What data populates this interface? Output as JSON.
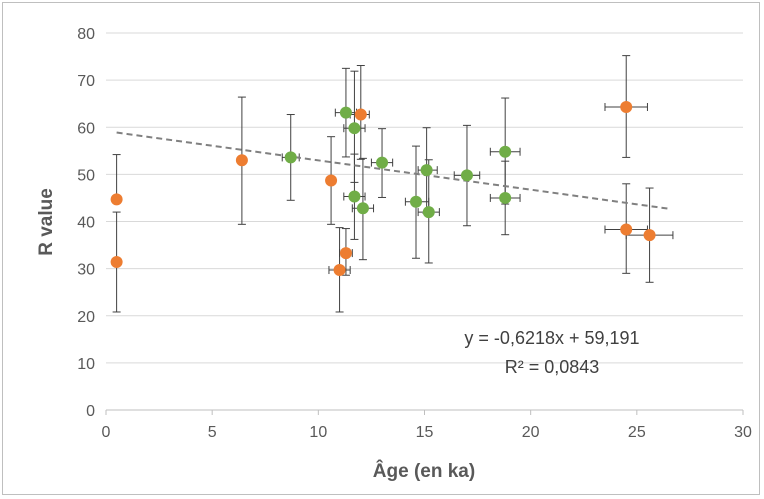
{
  "chart_data": {
    "type": "scatter",
    "xlabel": "Âge (en ka)",
    "ylabel": "R value",
    "xlim": [
      0,
      30
    ],
    "ylim": [
      0,
      80
    ],
    "x_ticks": [
      "0",
      "5",
      "10",
      "15",
      "20",
      "25",
      "30"
    ],
    "y_ticks": [
      "0",
      "10",
      "20",
      "30",
      "40",
      "50",
      "60",
      "70",
      "80"
    ],
    "grid": true,
    "legend": "none",
    "colors": {
      "orange": "#ED7D31",
      "green": "#70AD47",
      "error": "#404040",
      "grid": "#d9d9d9",
      "trend": "#808080"
    },
    "series": [
      {
        "color": "orange",
        "points": [
          {
            "x": 0.5,
            "y": 44.7,
            "yerr": [
              44.7,
              54.2
            ],
            "xerr": null
          },
          {
            "x": 0.5,
            "y": 31.4,
            "yerr": [
              20.8,
              42.0
            ],
            "xerr": null
          },
          {
            "x": 6.4,
            "y": 53.0,
            "yerr": [
              39.4,
              66.4
            ],
            "xerr": null
          },
          {
            "x": 10.6,
            "y": 48.7,
            "yerr": [
              39.4,
              58.0
            ],
            "xerr": null
          },
          {
            "x": 11.0,
            "y": 29.7,
            "yerr": [
              20.8,
              38.7
            ],
            "xerr": [
              10.5,
              11.5
            ]
          },
          {
            "x": 11.3,
            "y": 33.3,
            "yerr": [
              28.6,
              38.5
            ],
            "xerr": [
              11.0,
              11.6
            ]
          },
          {
            "x": 12.0,
            "y": 62.7,
            "yerr": [
              53.2,
              73.1
            ],
            "xerr": [
              11.5,
              12.4
            ]
          },
          {
            "x": 24.5,
            "y": 64.3,
            "yerr": [
              53.6,
              75.2
            ],
            "xerr": [
              23.5,
              25.5
            ]
          },
          {
            "x": 24.5,
            "y": 38.3,
            "yerr": [
              29.0,
              48.0
            ],
            "xerr": [
              23.5,
              25.5
            ]
          },
          {
            "x": 25.6,
            "y": 37.1,
            "yerr": [
              27.1,
              47.1
            ],
            "xerr": [
              24.5,
              26.7
            ]
          }
        ]
      },
      {
        "color": "green",
        "points": [
          {
            "x": 8.7,
            "y": 53.6,
            "yerr": [
              44.5,
              62.7
            ],
            "xerr": [
              8.3,
              9.1
            ]
          },
          {
            "x": 11.3,
            "y": 63.1,
            "yerr": [
              53.7,
              72.5
            ],
            "xerr": [
              10.8,
              11.8
            ]
          },
          {
            "x": 11.7,
            "y": 59.8,
            "yerr": [
              48.3,
              71.9
            ],
            "xerr": [
              11.2,
              12.2
            ]
          },
          {
            "x": 11.7,
            "y": 45.3,
            "yerr": [
              36.2,
              54.3
            ],
            "xerr": [
              11.2,
              12.2
            ]
          },
          {
            "x": 12.1,
            "y": 42.8,
            "yerr": [
              31.9,
              53.4
            ],
            "xerr": [
              11.6,
              12.6
            ]
          },
          {
            "x": 13.0,
            "y": 52.5,
            "yerr": [
              45.1,
              59.7
            ],
            "xerr": [
              12.5,
              13.5
            ]
          },
          {
            "x": 14.6,
            "y": 44.2,
            "yerr": [
              32.2,
              56.0
            ],
            "xerr": [
              14.1,
              15.2
            ]
          },
          {
            "x": 15.1,
            "y": 50.9,
            "yerr": [
              41.7,
              59.9
            ],
            "xerr": [
              14.7,
              15.6
            ]
          },
          {
            "x": 15.2,
            "y": 42.0,
            "yerr": [
              31.2,
              53.1
            ],
            "xerr": [
              14.7,
              15.7
            ]
          },
          {
            "x": 17.0,
            "y": 49.8,
            "yerr": [
              39.1,
              60.4
            ],
            "xerr": [
              16.4,
              17.6
            ]
          },
          {
            "x": 18.8,
            "y": 54.8,
            "yerr": [
              43.7,
              66.2
            ],
            "xerr": [
              18.1,
              19.5
            ]
          },
          {
            "x": 18.8,
            "y": 45.0,
            "yerr": [
              37.2,
              52.8
            ],
            "xerr": [
              18.1,
              19.5
            ]
          }
        ]
      }
    ],
    "trendline": {
      "slope": -0.6218,
      "intercept": 59.191,
      "x_range": [
        0.5,
        26.5
      ],
      "equation": "y = -0,6218x + 59,191",
      "r2": "R² = 0,0843"
    }
  }
}
